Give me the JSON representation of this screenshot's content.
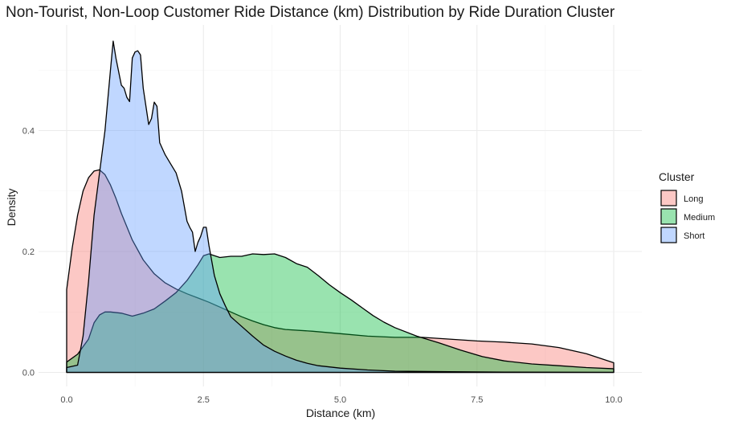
{
  "chart_data": {
    "type": "area",
    "title": "Non-Tourist, Non-Loop Customer Ride Distance (km) Distribution by Ride Duration Cluster",
    "xlabel": "Distance (km)",
    "ylabel": "Density",
    "xlim": [
      0,
      10
    ],
    "ylim": [
      0,
      0.55
    ],
    "x_ticks": [
      0,
      2.5,
      5,
      7.5,
      10
    ],
    "x_tick_labels": [
      "0.0",
      "2.5",
      "5.0",
      "7.5",
      "10.0"
    ],
    "y_ticks": [
      0,
      0.2,
      0.4
    ],
    "y_tick_labels": [
      "0.0",
      "0.2",
      "0.4"
    ],
    "grid": true,
    "legend": {
      "title": "Cluster",
      "position": "right"
    },
    "series": [
      {
        "name": "Long",
        "color": "#F8766D",
        "points": [
          [
            0,
            0.137
          ],
          [
            0.1,
            0.205
          ],
          [
            0.2,
            0.26
          ],
          [
            0.3,
            0.3
          ],
          [
            0.4,
            0.322
          ],
          [
            0.5,
            0.333
          ],
          [
            0.6,
            0.335
          ],
          [
            0.7,
            0.327
          ],
          [
            0.8,
            0.31
          ],
          [
            0.9,
            0.288
          ],
          [
            1.0,
            0.263
          ],
          [
            1.2,
            0.219
          ],
          [
            1.4,
            0.186
          ],
          [
            1.6,
            0.163
          ],
          [
            1.8,
            0.148
          ],
          [
            2.0,
            0.138
          ],
          [
            2.2,
            0.13
          ],
          [
            2.4,
            0.123
          ],
          [
            2.6,
            0.116
          ],
          [
            2.8,
            0.108
          ],
          [
            3.0,
            0.1
          ],
          [
            3.2,
            0.092
          ],
          [
            3.4,
            0.085
          ],
          [
            3.6,
            0.079
          ],
          [
            3.8,
            0.074
          ],
          [
            4.0,
            0.071
          ],
          [
            4.5,
            0.068
          ],
          [
            5.0,
            0.064
          ],
          [
            5.5,
            0.06
          ],
          [
            6.0,
            0.058
          ],
          [
            6.5,
            0.058
          ],
          [
            7.0,
            0.055
          ],
          [
            7.5,
            0.052
          ],
          [
            8.0,
            0.05
          ],
          [
            8.5,
            0.047
          ],
          [
            9.0,
            0.041
          ],
          [
            9.5,
            0.031
          ],
          [
            10.0,
            0.016
          ]
        ]
      },
      {
        "name": "Medium",
        "color": "#00BA38",
        "points": [
          [
            0,
            0.017
          ],
          [
            0.2,
            0.03
          ],
          [
            0.4,
            0.055
          ],
          [
            0.5,
            0.082
          ],
          [
            0.6,
            0.095
          ],
          [
            0.7,
            0.1
          ],
          [
            0.8,
            0.1
          ],
          [
            1.0,
            0.098
          ],
          [
            1.2,
            0.093
          ],
          [
            1.4,
            0.098
          ],
          [
            1.6,
            0.105
          ],
          [
            1.8,
            0.118
          ],
          [
            2.0,
            0.132
          ],
          [
            2.2,
            0.152
          ],
          [
            2.4,
            0.178
          ],
          [
            2.5,
            0.193
          ],
          [
            2.6,
            0.196
          ],
          [
            2.8,
            0.19
          ],
          [
            3.0,
            0.192
          ],
          [
            3.2,
            0.192
          ],
          [
            3.4,
            0.196
          ],
          [
            3.6,
            0.195
          ],
          [
            3.8,
            0.196
          ],
          [
            4.0,
            0.19
          ],
          [
            4.2,
            0.18
          ],
          [
            4.4,
            0.174
          ],
          [
            4.6,
            0.16
          ],
          [
            4.8,
            0.145
          ],
          [
            5.0,
            0.132
          ],
          [
            5.2,
            0.12
          ],
          [
            5.4,
            0.107
          ],
          [
            5.6,
            0.094
          ],
          [
            5.8,
            0.083
          ],
          [
            6.0,
            0.074
          ],
          [
            6.4,
            0.06
          ],
          [
            6.8,
            0.049
          ],
          [
            7.2,
            0.037
          ],
          [
            7.6,
            0.026
          ],
          [
            8.0,
            0.019
          ],
          [
            8.5,
            0.014
          ],
          [
            9.0,
            0.011
          ],
          [
            9.5,
            0.008
          ],
          [
            10.0,
            0.006
          ]
        ]
      },
      {
        "name": "Short",
        "color": "#619CFF",
        "points": [
          [
            0,
            0.008
          ],
          [
            0.2,
            0.012
          ],
          [
            0.3,
            0.06
          ],
          [
            0.4,
            0.15
          ],
          [
            0.5,
            0.26
          ],
          [
            0.6,
            0.33
          ],
          [
            0.7,
            0.4
          ],
          [
            0.8,
            0.5
          ],
          [
            0.85,
            0.548
          ],
          [
            0.9,
            0.52
          ],
          [
            1.0,
            0.475
          ],
          [
            1.05,
            0.47
          ],
          [
            1.1,
            0.455
          ],
          [
            1.15,
            0.448
          ],
          [
            1.2,
            0.52
          ],
          [
            1.25,
            0.53
          ],
          [
            1.3,
            0.532
          ],
          [
            1.35,
            0.525
          ],
          [
            1.4,
            0.47
          ],
          [
            1.5,
            0.41
          ],
          [
            1.55,
            0.42
          ],
          [
            1.6,
            0.447
          ],
          [
            1.65,
            0.44
          ],
          [
            1.7,
            0.38
          ],
          [
            1.8,
            0.36
          ],
          [
            1.9,
            0.345
          ],
          [
            2.0,
            0.33
          ],
          [
            2.1,
            0.3
          ],
          [
            2.2,
            0.25
          ],
          [
            2.25,
            0.24
          ],
          [
            2.3,
            0.232
          ],
          [
            2.35,
            0.2
          ],
          [
            2.4,
            0.215
          ],
          [
            2.45,
            0.225
          ],
          [
            2.5,
            0.24
          ],
          [
            2.55,
            0.24
          ],
          [
            2.6,
            0.21
          ],
          [
            2.7,
            0.16
          ],
          [
            2.8,
            0.13
          ],
          [
            2.9,
            0.11
          ],
          [
            3.0,
            0.092
          ],
          [
            3.2,
            0.076
          ],
          [
            3.4,
            0.06
          ],
          [
            3.6,
            0.045
          ],
          [
            3.8,
            0.035
          ],
          [
            4.0,
            0.027
          ],
          [
            4.2,
            0.02
          ],
          [
            4.4,
            0.015
          ],
          [
            4.6,
            0.011
          ],
          [
            4.8,
            0.009
          ],
          [
            5.0,
            0.007
          ],
          [
            5.5,
            0.004
          ],
          [
            6.0,
            0.002
          ],
          [
            7.0,
            0.001
          ],
          [
            8.0,
            0.0005
          ],
          [
            10.0,
            0.0
          ]
        ]
      }
    ]
  }
}
